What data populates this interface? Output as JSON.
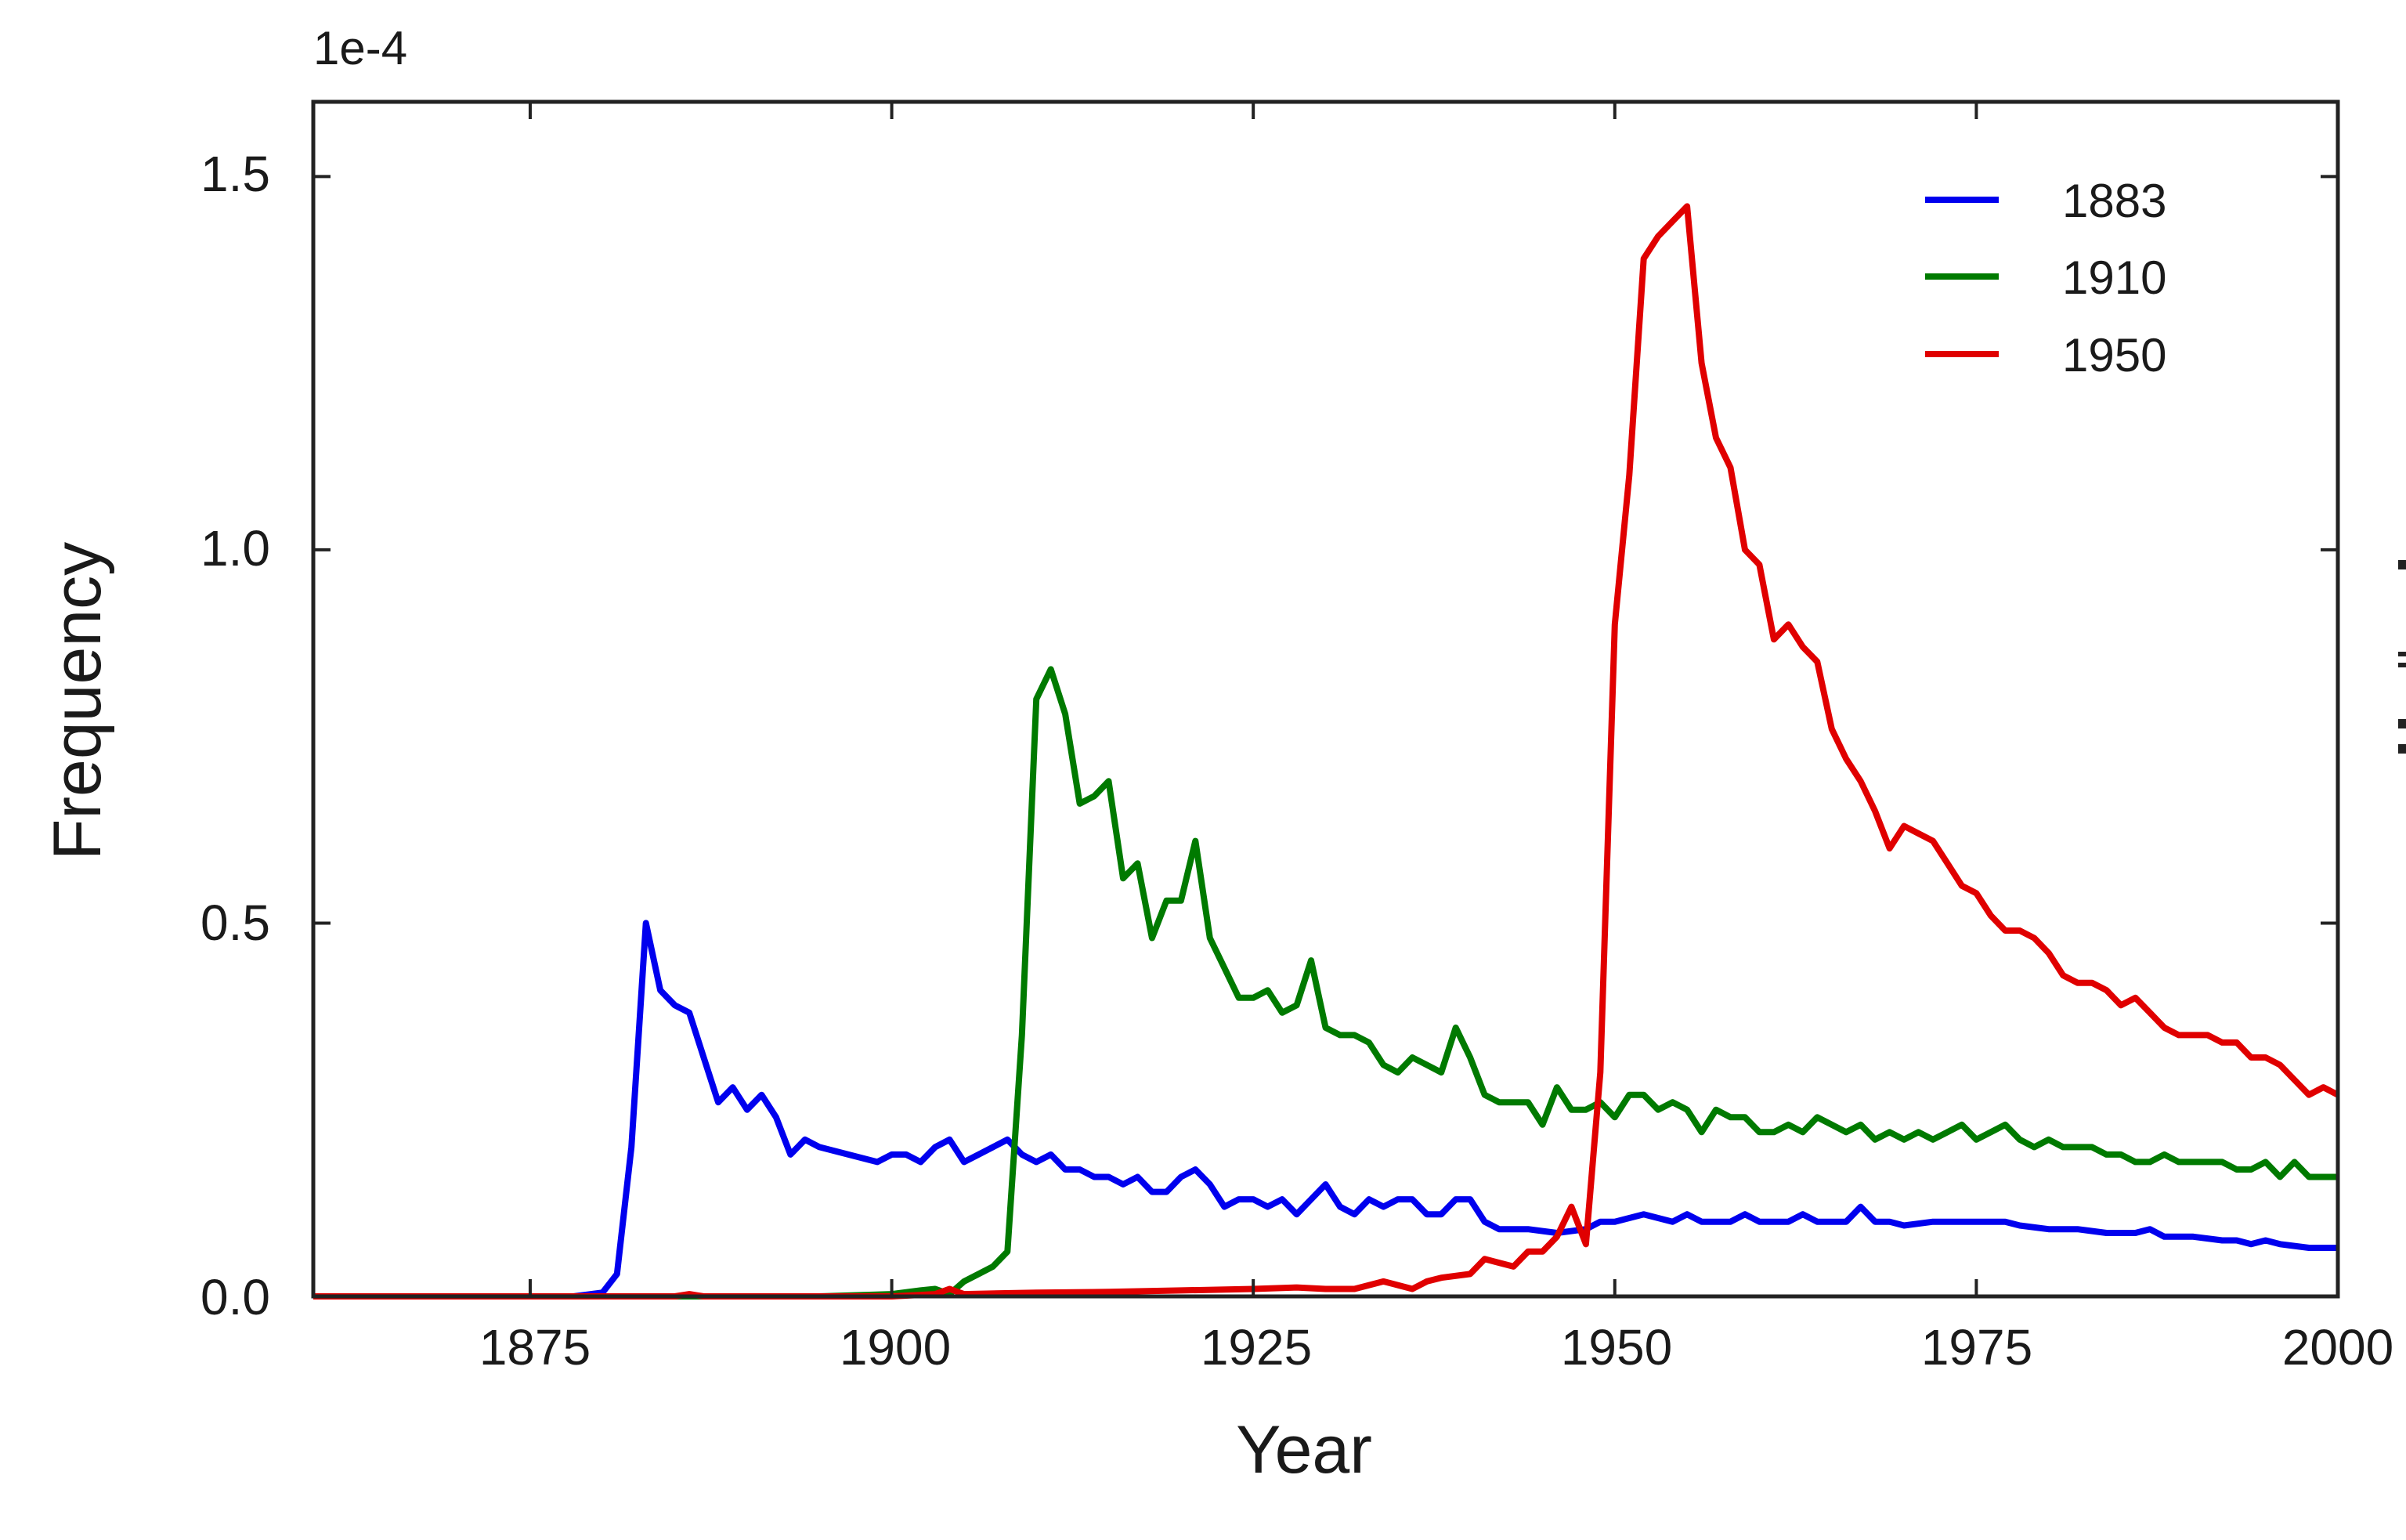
{
  "chart_data": {
    "type": "line",
    "title": "",
    "xlabel": "Year",
    "ylabel": "Frequency",
    "y_scale_label": "1e-4",
    "xlim": [
      1860,
      2000
    ],
    "ylim": [
      0,
      1.6
    ],
    "x_ticks": [
      1875,
      1900,
      1925,
      1950,
      1975,
      2000
    ],
    "x_tick_labels": [
      "1875",
      "1900",
      "1925",
      "1950",
      "1975",
      "2000"
    ],
    "y_ticks": [
      0.0,
      0.5,
      1.0,
      1.5
    ],
    "y_tick_labels": [
      "0.0",
      "0.5",
      "1.0",
      "1.5"
    ],
    "grid": false,
    "legend_position": "upper right",
    "series": [
      {
        "name": "1883",
        "color": "#0000ee",
        "points": [
          [
            1860,
            0
          ],
          [
            1870,
            0
          ],
          [
            1878,
            0
          ],
          [
            1880,
            0.005
          ],
          [
            1881,
            0.03
          ],
          [
            1882,
            0.2
          ],
          [
            1883,
            0.5
          ],
          [
            1884,
            0.41
          ],
          [
            1885,
            0.39
          ],
          [
            1886,
            0.38
          ],
          [
            1887,
            0.32
          ],
          [
            1888,
            0.26
          ],
          [
            1889,
            0.28
          ],
          [
            1890,
            0.25
          ],
          [
            1891,
            0.27
          ],
          [
            1892,
            0.24
          ],
          [
            1893,
            0.19
          ],
          [
            1894,
            0.21
          ],
          [
            1895,
            0.2
          ],
          [
            1897,
            0.19
          ],
          [
            1899,
            0.18
          ],
          [
            1900,
            0.19
          ],
          [
            1901,
            0.19
          ],
          [
            1902,
            0.18
          ],
          [
            1903,
            0.2
          ],
          [
            1904,
            0.21
          ],
          [
            1905,
            0.18
          ],
          [
            1906,
            0.19
          ],
          [
            1907,
            0.2
          ],
          [
            1908,
            0.21
          ],
          [
            1909,
            0.19
          ],
          [
            1910,
            0.18
          ],
          [
            1911,
            0.19
          ],
          [
            1912,
            0.17
          ],
          [
            1913,
            0.17
          ],
          [
            1914,
            0.16
          ],
          [
            1915,
            0.16
          ],
          [
            1916,
            0.15
          ],
          [
            1917,
            0.16
          ],
          [
            1918,
            0.14
          ],
          [
            1919,
            0.14
          ],
          [
            1920,
            0.16
          ],
          [
            1921,
            0.17
          ],
          [
            1922,
            0.15
          ],
          [
            1923,
            0.12
          ],
          [
            1924,
            0.13
          ],
          [
            1925,
            0.13
          ],
          [
            1926,
            0.12
          ],
          [
            1927,
            0.13
          ],
          [
            1928,
            0.11
          ],
          [
            1929,
            0.13
          ],
          [
            1930,
            0.15
          ],
          [
            1931,
            0.12
          ],
          [
            1932,
            0.11
          ],
          [
            1933,
            0.13
          ],
          [
            1934,
            0.12
          ],
          [
            1935,
            0.13
          ],
          [
            1936,
            0.13
          ],
          [
            1937,
            0.11
          ],
          [
            1938,
            0.11
          ],
          [
            1939,
            0.13
          ],
          [
            1940,
            0.13
          ],
          [
            1941,
            0.1
          ],
          [
            1942,
            0.09
          ],
          [
            1944,
            0.09
          ],
          [
            1946,
            0.085
          ],
          [
            1948,
            0.09
          ],
          [
            1949,
            0.1
          ],
          [
            1950,
            0.1
          ],
          [
            1952,
            0.11
          ],
          [
            1954,
            0.1
          ],
          [
            1955,
            0.11
          ],
          [
            1956,
            0.1
          ],
          [
            1958,
            0.1
          ],
          [
            1959,
            0.11
          ],
          [
            1960,
            0.1
          ],
          [
            1962,
            0.1
          ],
          [
            1963,
            0.11
          ],
          [
            1964,
            0.1
          ],
          [
            1966,
            0.1
          ],
          [
            1967,
            0.12
          ],
          [
            1968,
            0.1
          ],
          [
            1969,
            0.1
          ],
          [
            1970,
            0.095
          ],
          [
            1972,
            0.1
          ],
          [
            1974,
            0.1
          ],
          [
            1976,
            0.1
          ],
          [
            1977,
            0.1
          ],
          [
            1978,
            0.095
          ],
          [
            1980,
            0.09
          ],
          [
            1982,
            0.09
          ],
          [
            1984,
            0.085
          ],
          [
            1986,
            0.085
          ],
          [
            1987,
            0.09
          ],
          [
            1988,
            0.08
          ],
          [
            1990,
            0.08
          ],
          [
            1992,
            0.075
          ],
          [
            1993,
            0.075
          ],
          [
            1994,
            0.07
          ],
          [
            1995,
            0.075
          ],
          [
            1996,
            0.07
          ],
          [
            1998,
            0.065
          ],
          [
            2000,
            0.065
          ]
        ]
      },
      {
        "name": "1910",
        "color": "#007a00",
        "points": [
          [
            1860,
            0
          ],
          [
            1880,
            0
          ],
          [
            1895,
            0
          ],
          [
            1900,
            0.003
          ],
          [
            1902,
            0.008
          ],
          [
            1903,
            0.01
          ],
          [
            1904,
            0.003
          ],
          [
            1905,
            0.02
          ],
          [
            1906,
            0.03
          ],
          [
            1907,
            0.04
          ],
          [
            1908,
            0.06
          ],
          [
            1909,
            0.35
          ],
          [
            1910,
            0.8
          ],
          [
            1911,
            0.84
          ],
          [
            1912,
            0.78
          ],
          [
            1913,
            0.66
          ],
          [
            1914,
            0.67
          ],
          [
            1915,
            0.69
          ],
          [
            1916,
            0.56
          ],
          [
            1917,
            0.58
          ],
          [
            1918,
            0.48
          ],
          [
            1919,
            0.53
          ],
          [
            1920,
            0.53
          ],
          [
            1921,
            0.61
          ],
          [
            1922,
            0.48
          ],
          [
            1923,
            0.44
          ],
          [
            1924,
            0.4
          ],
          [
            1925,
            0.4
          ],
          [
            1926,
            0.41
          ],
          [
            1927,
            0.38
          ],
          [
            1928,
            0.39
          ],
          [
            1929,
            0.45
          ],
          [
            1930,
            0.36
          ],
          [
            1931,
            0.35
          ],
          [
            1932,
            0.35
          ],
          [
            1933,
            0.34
          ],
          [
            1934,
            0.31
          ],
          [
            1935,
            0.3
          ],
          [
            1936,
            0.32
          ],
          [
            1937,
            0.31
          ],
          [
            1938,
            0.3
          ],
          [
            1939,
            0.36
          ],
          [
            1940,
            0.32
          ],
          [
            1941,
            0.27
          ],
          [
            1942,
            0.26
          ],
          [
            1943,
            0.26
          ],
          [
            1944,
            0.26
          ],
          [
            1945,
            0.23
          ],
          [
            1946,
            0.28
          ],
          [
            1947,
            0.25
          ],
          [
            1948,
            0.25
          ],
          [
            1949,
            0.26
          ],
          [
            1950,
            0.24
          ],
          [
            1951,
            0.27
          ],
          [
            1952,
            0.27
          ],
          [
            1953,
            0.25
          ],
          [
            1954,
            0.26
          ],
          [
            1955,
            0.25
          ],
          [
            1956,
            0.22
          ],
          [
            1957,
            0.25
          ],
          [
            1958,
            0.24
          ],
          [
            1959,
            0.24
          ],
          [
            1960,
            0.22
          ],
          [
            1961,
            0.22
          ],
          [
            1962,
            0.23
          ],
          [
            1963,
            0.22
          ],
          [
            1964,
            0.24
          ],
          [
            1965,
            0.23
          ],
          [
            1966,
            0.22
          ],
          [
            1967,
            0.23
          ],
          [
            1968,
            0.21
          ],
          [
            1969,
            0.22
          ],
          [
            1970,
            0.21
          ],
          [
            1971,
            0.22
          ],
          [
            1972,
            0.21
          ],
          [
            1973,
            0.22
          ],
          [
            1974,
            0.23
          ],
          [
            1975,
            0.21
          ],
          [
            1976,
            0.22
          ],
          [
            1977,
            0.23
          ],
          [
            1978,
            0.21
          ],
          [
            1979,
            0.2
          ],
          [
            1980,
            0.21
          ],
          [
            1981,
            0.2
          ],
          [
            1982,
            0.2
          ],
          [
            1983,
            0.2
          ],
          [
            1984,
            0.19
          ],
          [
            1985,
            0.19
          ],
          [
            1986,
            0.18
          ],
          [
            1987,
            0.18
          ],
          [
            1988,
            0.19
          ],
          [
            1989,
            0.18
          ],
          [
            1990,
            0.18
          ],
          [
            1991,
            0.18
          ],
          [
            1992,
            0.18
          ],
          [
            1993,
            0.17
          ],
          [
            1994,
            0.17
          ],
          [
            1995,
            0.18
          ],
          [
            1996,
            0.16
          ],
          [
            1997,
            0.18
          ],
          [
            1998,
            0.16
          ],
          [
            1999,
            0.16
          ],
          [
            2000,
            0.16
          ]
        ]
      },
      {
        "name": "1950",
        "color": "#e00000",
        "points": [
          [
            1860,
            0
          ],
          [
            1885,
            0
          ],
          [
            1886,
            0.003
          ],
          [
            1887,
            0
          ],
          [
            1900,
            0
          ],
          [
            1903,
            0.003
          ],
          [
            1904,
            0.01
          ],
          [
            1905,
            0.003
          ],
          [
            1910,
            0.005
          ],
          [
            1915,
            0.006
          ],
          [
            1920,
            0.008
          ],
          [
            1925,
            0.01
          ],
          [
            1928,
            0.012
          ],
          [
            1930,
            0.01
          ],
          [
            1932,
            0.01
          ],
          [
            1934,
            0.02
          ],
          [
            1936,
            0.01
          ],
          [
            1937,
            0.02
          ],
          [
            1938,
            0.025
          ],
          [
            1940,
            0.03
          ],
          [
            1941,
            0.05
          ],
          [
            1942,
            0.045
          ],
          [
            1943,
            0.04
          ],
          [
            1944,
            0.06
          ],
          [
            1945,
            0.06
          ],
          [
            1946,
            0.08
          ],
          [
            1947,
            0.12
          ],
          [
            1948,
            0.07
          ],
          [
            1949,
            0.3
          ],
          [
            1950,
            0.9
          ],
          [
            1951,
            1.1
          ],
          [
            1952,
            1.39
          ],
          [
            1953,
            1.42
          ],
          [
            1954,
            1.44
          ],
          [
            1955,
            1.46
          ],
          [
            1956,
            1.25
          ],
          [
            1957,
            1.15
          ],
          [
            1958,
            1.11
          ],
          [
            1959,
            1.0
          ],
          [
            1960,
            0.98
          ],
          [
            1961,
            0.88
          ],
          [
            1962,
            0.9
          ],
          [
            1963,
            0.87
          ],
          [
            1964,
            0.85
          ],
          [
            1965,
            0.76
          ],
          [
            1966,
            0.72
          ],
          [
            1967,
            0.69
          ],
          [
            1968,
            0.65
          ],
          [
            1969,
            0.6
          ],
          [
            1970,
            0.63
          ],
          [
            1971,
            0.62
          ],
          [
            1972,
            0.61
          ],
          [
            1973,
            0.58
          ],
          [
            1974,
            0.55
          ],
          [
            1975,
            0.54
          ],
          [
            1976,
            0.51
          ],
          [
            1977,
            0.49
          ],
          [
            1978,
            0.49
          ],
          [
            1979,
            0.48
          ],
          [
            1980,
            0.46
          ],
          [
            1981,
            0.43
          ],
          [
            1982,
            0.42
          ],
          [
            1983,
            0.42
          ],
          [
            1984,
            0.41
          ],
          [
            1985,
            0.39
          ],
          [
            1986,
            0.4
          ],
          [
            1987,
            0.38
          ],
          [
            1988,
            0.36
          ],
          [
            1989,
            0.35
          ],
          [
            1990,
            0.35
          ],
          [
            1991,
            0.35
          ],
          [
            1992,
            0.34
          ],
          [
            1993,
            0.34
          ],
          [
            1994,
            0.32
          ],
          [
            1995,
            0.32
          ],
          [
            1996,
            0.31
          ],
          [
            1997,
            0.29
          ],
          [
            1998,
            0.27
          ],
          [
            1999,
            0.28
          ],
          [
            2000,
            0.27
          ]
        ]
      }
    ]
  },
  "axes": {
    "x_title": "Year",
    "y_title": "Frequency",
    "y_multiplier": "1e-4",
    "x_tick_labels": [
      "1875",
      "1900",
      "1925",
      "1950",
      "1975",
      "2000"
    ],
    "y_tick_labels": [
      "0.0",
      "0.5",
      "1.0",
      "1.5"
    ]
  },
  "legend": {
    "items": [
      {
        "label": "1883",
        "color": "#0000ee"
      },
      {
        "label": "1910",
        "color": "#007a00"
      },
      {
        "label": "1950",
        "color": "#e00000"
      }
    ]
  }
}
